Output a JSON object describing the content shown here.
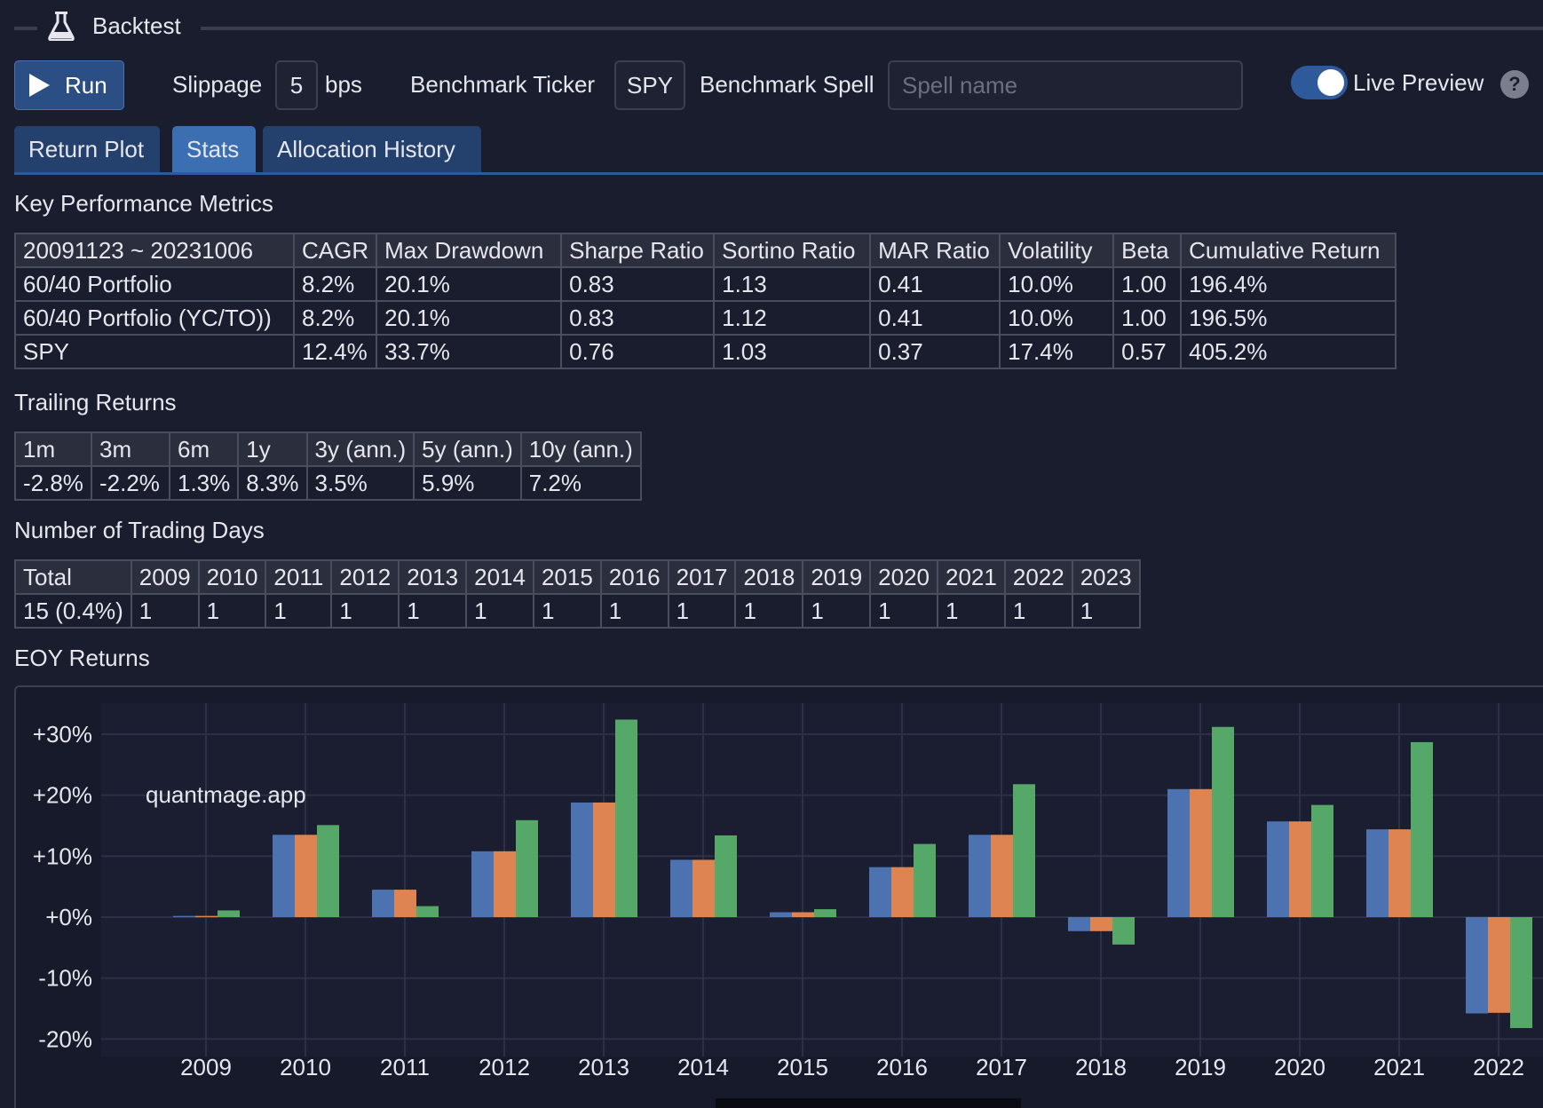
{
  "header": {
    "title": "Backtest",
    "icon": "flask-icon"
  },
  "toolbar": {
    "run_label": "Run",
    "slippage_label": "Slippage",
    "slippage_value": "5",
    "slippage_unit": "bps",
    "benchmark_ticker_label": "Benchmark Ticker",
    "benchmark_ticker_value": "SPY",
    "benchmark_spell_label": "Benchmark Spell",
    "benchmark_spell_placeholder": "Spell name",
    "live_preview_label": "Live Preview",
    "live_preview_on": true,
    "help_label": "?"
  },
  "tabs": [
    {
      "label": "Return Plot",
      "active": false
    },
    {
      "label": "Stats",
      "active": true
    },
    {
      "label": "Allocation History",
      "active": false
    }
  ],
  "kpm": {
    "title": "Key Performance Metrics",
    "header": [
      "20091123 ~ 20231006",
      "CAGR",
      "Max Drawdown",
      "Sharpe Ratio",
      "Sortino Ratio",
      "MAR Ratio",
      "Volatility",
      "Beta",
      "Cumulative Return"
    ],
    "rows": [
      [
        "60/40 Portfolio",
        "8.2%",
        "20.1%",
        "0.83",
        "1.13",
        "0.41",
        "10.0%",
        "1.00",
        "196.4%"
      ],
      [
        "60/40 Portfolio (YC/TO))",
        "8.2%",
        "20.1%",
        "0.83",
        "1.12",
        "0.41",
        "10.0%",
        "1.00",
        "196.5%"
      ],
      [
        "SPY",
        "12.4%",
        "33.7%",
        "0.76",
        "1.03",
        "0.37",
        "17.4%",
        "0.57",
        "405.2%"
      ]
    ]
  },
  "trailing": {
    "title": "Trailing Returns",
    "header": [
      "1m",
      "3m",
      "6m",
      "1y",
      "3y (ann.)",
      "5y (ann.)",
      "10y (ann.)"
    ],
    "row": [
      "-2.8%",
      "-2.2%",
      "1.3%",
      "8.3%",
      "3.5%",
      "5.9%",
      "7.2%"
    ]
  },
  "trading_days": {
    "title": "Number of Trading Days",
    "header": [
      "Total",
      "2009",
      "2010",
      "2011",
      "2012",
      "2013",
      "2014",
      "2015",
      "2016",
      "2017",
      "2018",
      "2019",
      "2020",
      "2021",
      "2022",
      "2023"
    ],
    "row": [
      "15 (0.4%)",
      "1",
      "1",
      "1",
      "1",
      "1",
      "1",
      "1",
      "1",
      "1",
      "1",
      "1",
      "1",
      "1",
      "1",
      "1"
    ]
  },
  "eoy": {
    "title": "EOY Returns",
    "watermark": "quantmage.app"
  },
  "chart_data": {
    "type": "bar",
    "categories": [
      "2009",
      "2010",
      "2011",
      "2012",
      "2013",
      "2014",
      "2015",
      "2016",
      "2017",
      "2018",
      "2019",
      "2020",
      "2021",
      "2022"
    ],
    "series": [
      {
        "values": [
          0.2,
          13.5,
          4.5,
          10.8,
          18.8,
          9.4,
          0.8,
          8.2,
          13.5,
          -2.3,
          21.0,
          15.7,
          14.4,
          -15.8
        ],
        "color": "#4c72b0"
      },
      {
        "values": [
          0.2,
          13.5,
          4.5,
          10.8,
          18.8,
          9.4,
          0.8,
          8.2,
          13.5,
          -2.3,
          21.0,
          15.7,
          14.4,
          -15.7
        ],
        "color": "#dd8452"
      },
      {
        "values": [
          1.1,
          15.1,
          1.8,
          15.9,
          32.4,
          13.4,
          1.3,
          12.0,
          21.8,
          -4.5,
          31.2,
          18.4,
          28.7,
          -18.2
        ],
        "color": "#55a868"
      }
    ],
    "yticks": [
      "+30%",
      "+20%",
      "+10%",
      "+0%",
      "-10%",
      "-20%"
    ],
    "ylim": [
      -22,
      35
    ],
    "grid": true,
    "xlabel": "",
    "ylabel": ""
  }
}
